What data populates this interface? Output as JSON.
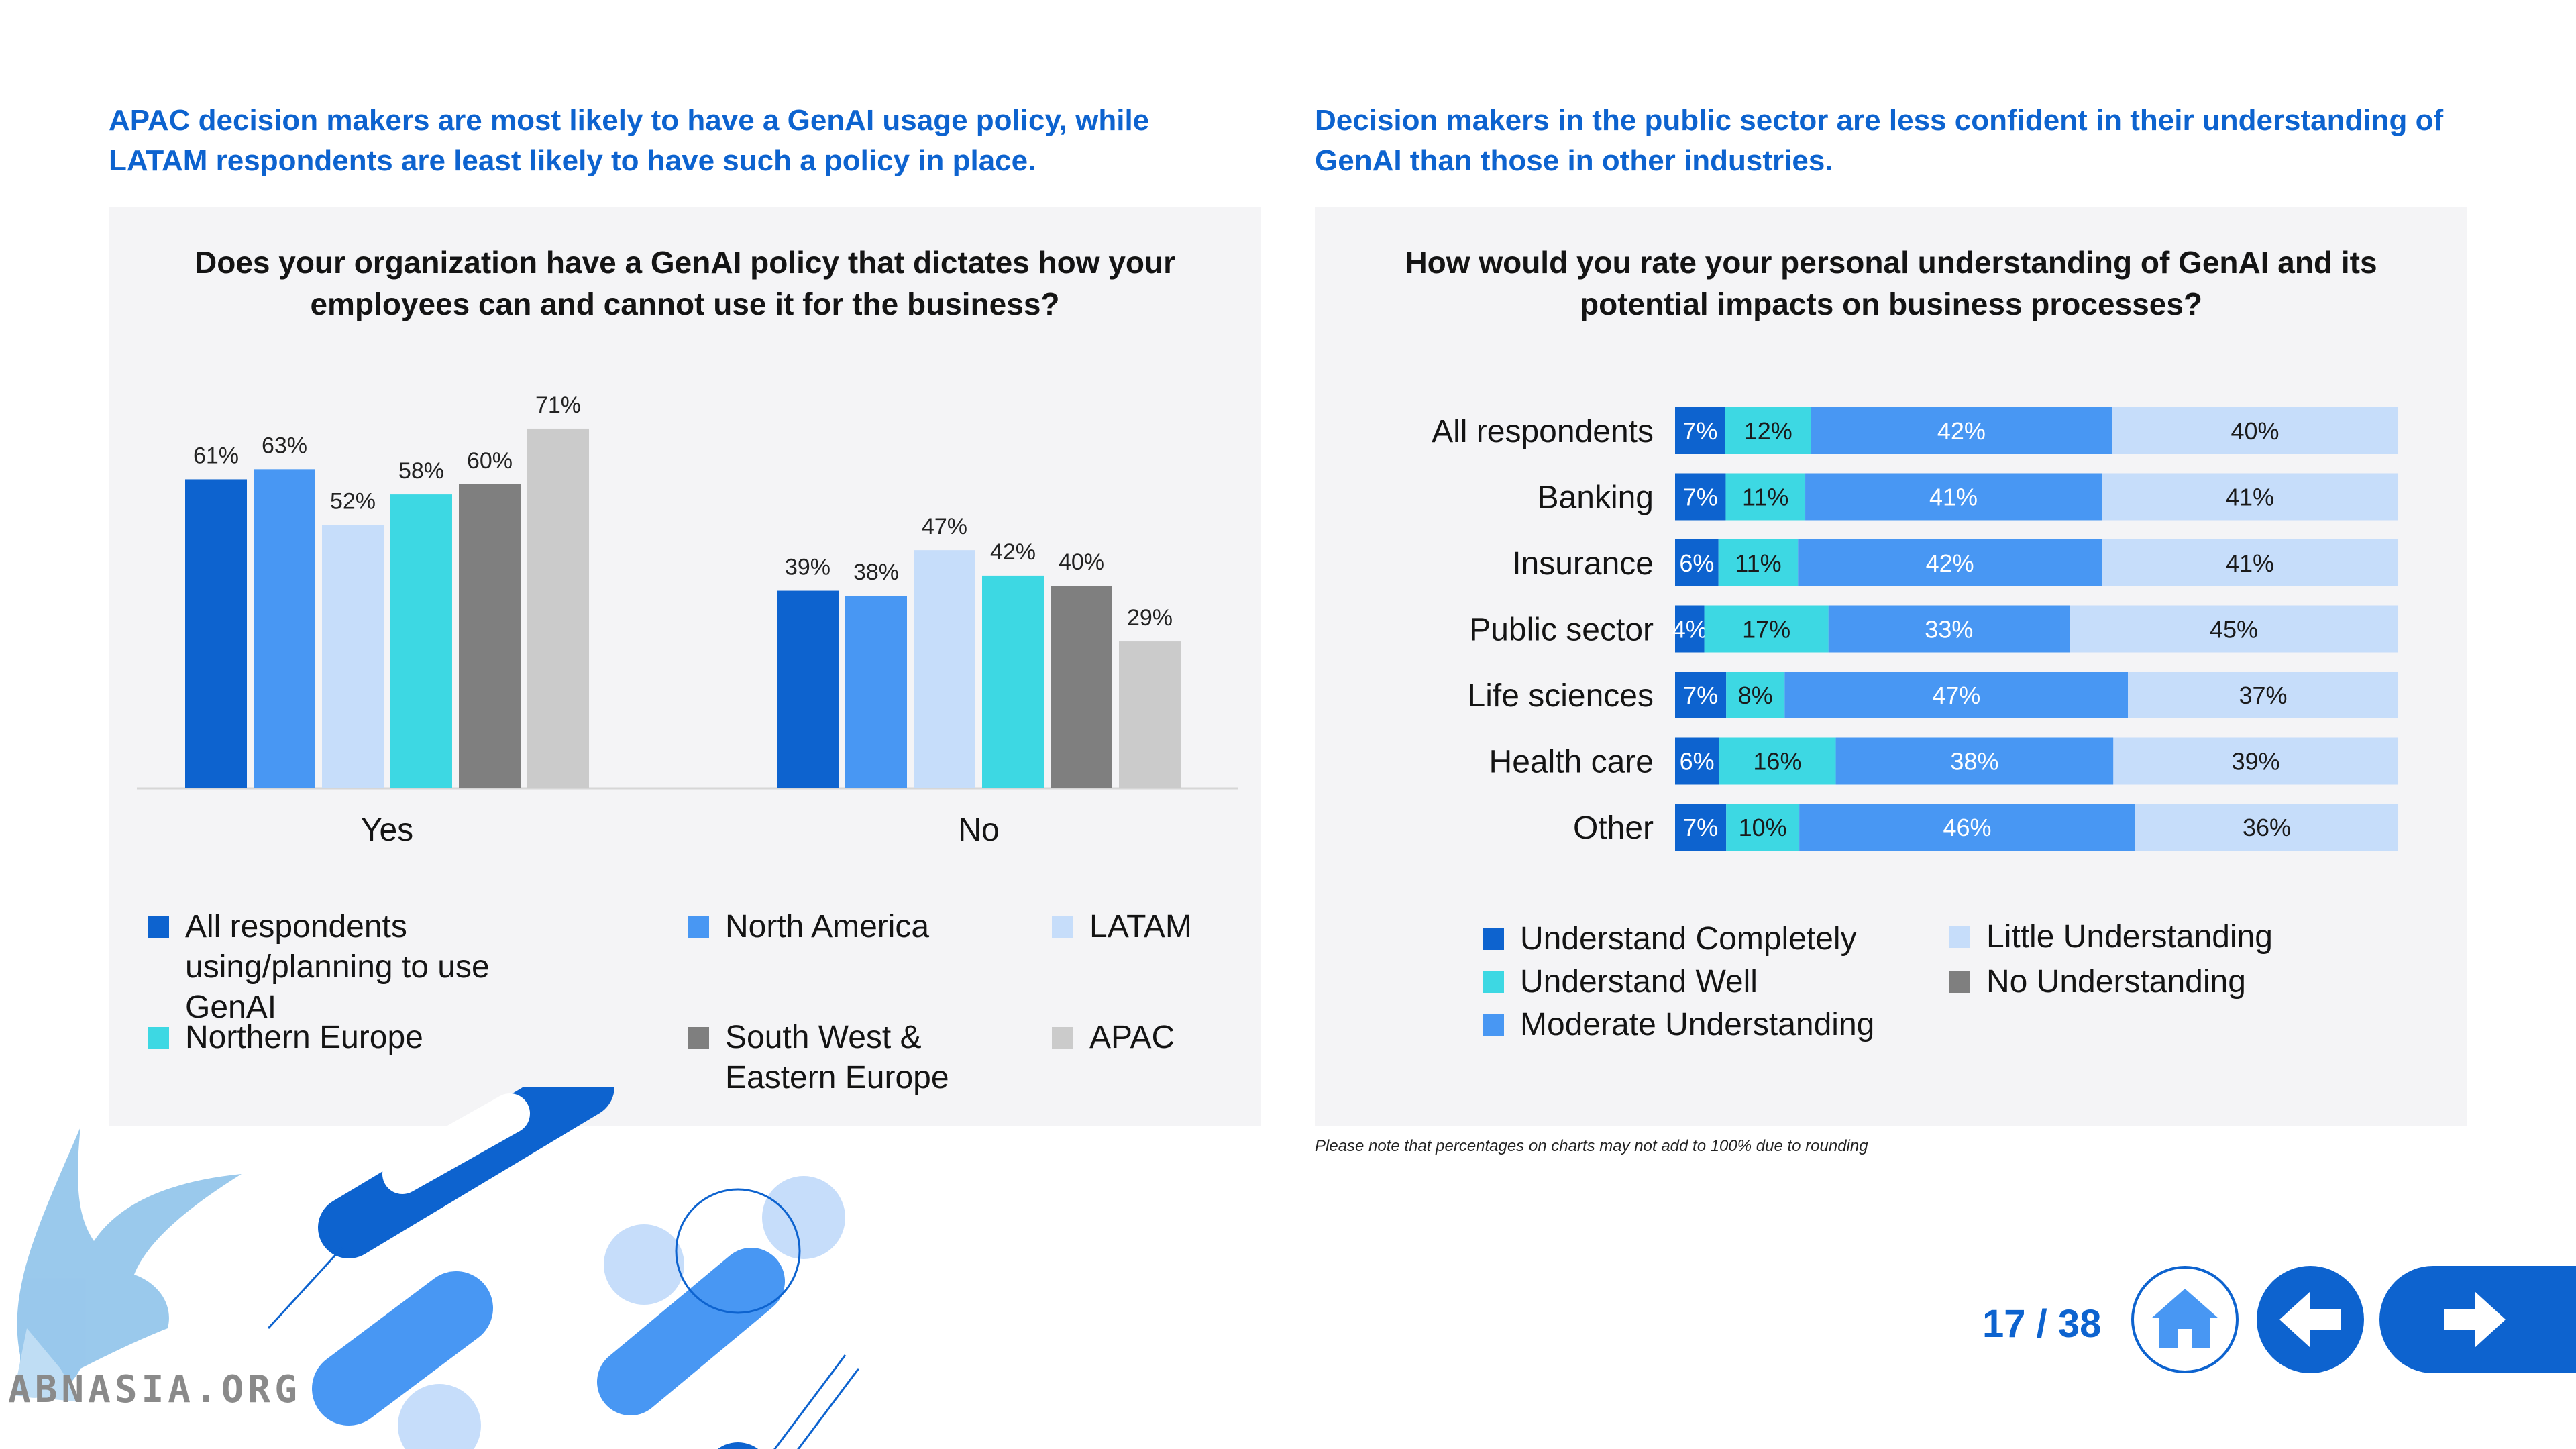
{
  "left": {
    "headline": "APAC decision makers are most likely to have a GenAI usage policy, while LATAM respondents are least likely to have such a policy in place.",
    "question": "Does your organization have a GenAI policy that dictates how your employees can and cannot use it for the business?"
  },
  "right": {
    "headline": "Decision makers in the public sector are less confident in their understanding of GenAI than those in other industries.",
    "question": "How would you rate your personal understanding of GenAI and its potential impacts on business processes?",
    "footnote": "Please note that percentages on charts may not add to 100% due to rounding"
  },
  "chart_data": [
    {
      "type": "bar",
      "title": "Does your organization have a GenAI policy that dictates how your employees can and cannot use it for the business?",
      "categories": [
        "Yes",
        "No"
      ],
      "ylim": [
        0,
        80
      ],
      "series": [
        {
          "name": "All respondents using/planning to use GenAI",
          "color": "#0d63cf",
          "values": [
            61,
            39
          ],
          "labels": [
            "61%",
            "39%"
          ]
        },
        {
          "name": "North America",
          "color": "#4897f3",
          "values": [
            63,
            38
          ],
          "labels": [
            "63%",
            "38%"
          ]
        },
        {
          "name": "LATAM",
          "color": "#c6ddfa",
          "values": [
            52,
            47
          ],
          "labels": [
            "52%",
            "47%"
          ]
        },
        {
          "name": "Northern Europe",
          "color": "#3dd8e3",
          "values": [
            58,
            42
          ],
          "labels": [
            "58%",
            "42%"
          ]
        },
        {
          "name": "South West & Eastern Europe",
          "color": "#7f7f7f",
          "values": [
            60,
            40
          ],
          "labels": [
            "60%",
            "40%"
          ]
        },
        {
          "name": "APAC",
          "color": "#cbcbcb",
          "values": [
            71,
            29
          ],
          "labels": [
            "71%",
            "29%"
          ]
        }
      ],
      "legend": [
        {
          "label": "All respondents using/planning to use GenAI",
          "color": "#0d63cf"
        },
        {
          "label": "North America",
          "color": "#4897f3"
        },
        {
          "label": "LATAM",
          "color": "#c6ddfa"
        },
        {
          "label": "Northern Europe",
          "color": "#3dd8e3"
        },
        {
          "label": "South West & Eastern Europe",
          "color": "#7f7f7f"
        },
        {
          "label": "APAC",
          "color": "#cbcbcb"
        }
      ]
    },
    {
      "type": "bar",
      "orientation": "horizontal-stacked",
      "title": "How would you rate your personal understanding of GenAI and its potential impacts on business processes?",
      "categories": [
        "All respondents",
        "Banking",
        "Insurance",
        "Public sector",
        "Life sciences",
        "Health care",
        "Other"
      ],
      "series": [
        {
          "name": "Understand Completely",
          "color": "#0d63cf",
          "text_color": "#ffffff",
          "values": [
            7,
            7,
            6,
            4,
            7,
            6,
            7
          ],
          "labels": [
            "7%",
            "7%",
            "6%",
            "4%",
            "7%",
            "6%",
            "7%"
          ]
        },
        {
          "name": "Understand Well",
          "color": "#3dd8e3",
          "text_color": "#1a1a1a",
          "values": [
            12,
            11,
            11,
            17,
            8,
            16,
            10
          ],
          "labels": [
            "12%",
            "11%",
            "11%",
            "17%",
            "8%",
            "16%",
            "10%"
          ]
        },
        {
          "name": "Moderate Understanding",
          "color": "#4897f3",
          "text_color": "#ffffff",
          "values": [
            42,
            41,
            42,
            33,
            47,
            38,
            46
          ],
          "labels": [
            "42%",
            "41%",
            "42%",
            "33%",
            "47%",
            "38%",
            "46%"
          ]
        },
        {
          "name": "Little Understanding",
          "color": "#c6ddfa",
          "text_color": "#1a1a1a",
          "values": [
            40,
            41,
            41,
            45,
            37,
            39,
            36
          ],
          "labels": [
            "40%",
            "41%",
            "41%",
            "45%",
            "37%",
            "39%",
            "36%"
          ]
        }
      ],
      "legend": [
        {
          "label": "Understand Completely",
          "color": "#0d63cf"
        },
        {
          "label": "Understand Well",
          "color": "#3dd8e3"
        },
        {
          "label": "Moderate Understanding",
          "color": "#4897f3"
        },
        {
          "label": "Little Understanding",
          "color": "#c6ddfa"
        },
        {
          "label": "No Understanding",
          "color": "#7f7f7f"
        }
      ]
    }
  ],
  "nav": {
    "page_indicator": "17 / 38",
    "home_icon": "home-icon",
    "back_icon": "arrow-left-icon",
    "next_icon": "arrow-right-icon",
    "accent": "#0d63cf"
  },
  "watermark": {
    "text": "ABNASIA.ORG",
    "logo": "griffin-logo"
  }
}
